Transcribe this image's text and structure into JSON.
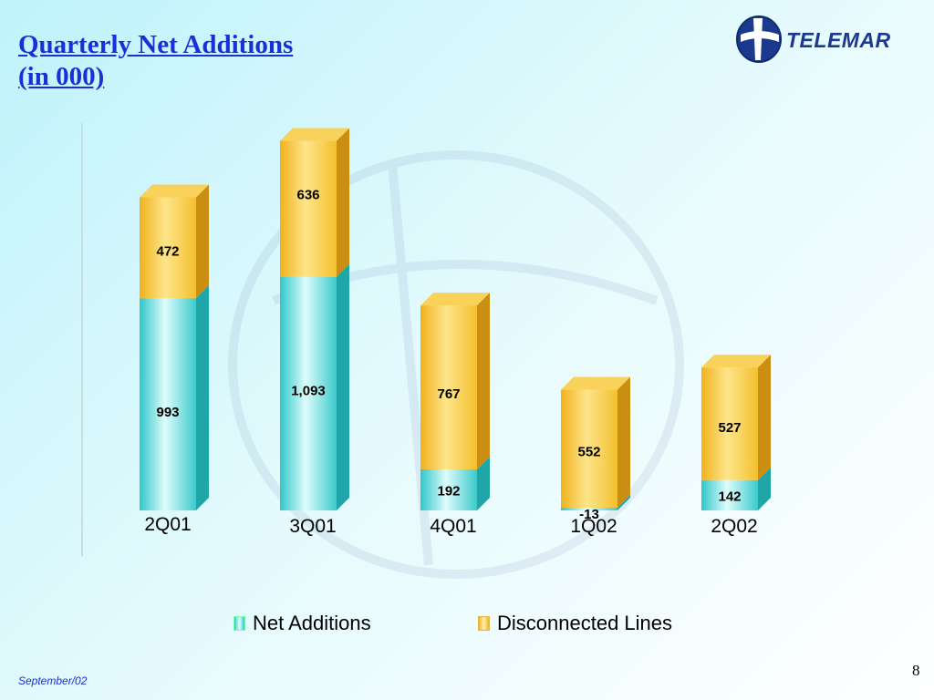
{
  "slide": {
    "title_line1": "Quarterly Net Additions",
    "title_line2": "(in 000)",
    "logo_text": "TELEMAR",
    "footer": "September/02",
    "page_number": "8"
  },
  "colors": {
    "net_additions": "#3cc9cb",
    "disconnected_lines": "#f5c234",
    "title": "#1a2fd6"
  },
  "chart_data": {
    "type": "bar",
    "stacked": true,
    "style": "3d",
    "categories": [
      "2Q01",
      "3Q01",
      "4Q01",
      "1Q02",
      "2Q02"
    ],
    "series": [
      {
        "name": "Net Additions",
        "values": [
          993,
          1093,
          192,
          -13,
          142
        ],
        "labels": [
          "993",
          "1,093",
          "192",
          "-13",
          "142"
        ]
      },
      {
        "name": "Disconnected Lines",
        "values": [
          472,
          636,
          767,
          552,
          527
        ],
        "labels": [
          "472",
          "636",
          "767",
          "552",
          "527"
        ]
      }
    ],
    "legend_position": "bottom",
    "grid": false
  }
}
